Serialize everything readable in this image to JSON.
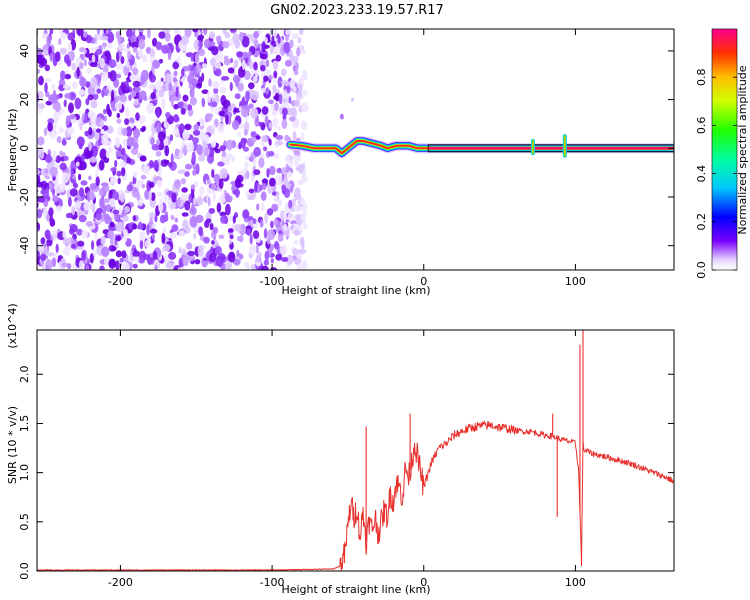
{
  "title": "GN02.2023.233.19.57.R17",
  "chart_data": [
    {
      "type": "heatmap",
      "xlabel": "Height of straight line (km)",
      "ylabel": "Frequency (Hz)",
      "xlim": [
        -255,
        165
      ],
      "ylim": [
        -50,
        49
      ],
      "xticks": [
        -200,
        -100,
        0,
        100
      ],
      "xtick_labels": [
        "-200",
        "-100",
        "0",
        "100"
      ],
      "yticks": [
        -40,
        -20,
        0,
        20,
        40
      ],
      "ytick_labels": [
        "-40",
        "-20",
        "0",
        "20",
        "40"
      ],
      "grid": false,
      "colorbar": {
        "label": "Normalized spectral amplitude",
        "range": [
          0,
          1
        ],
        "ticks": [
          0.0,
          0.2,
          0.4,
          0.6,
          0.8
        ],
        "tick_labels": [
          "0.0",
          "0.2",
          "0.4",
          "0.6",
          "0.8"
        ],
        "colormap": "rainbow"
      },
      "noise_region_x": [
        -255,
        -80
      ],
      "signal_track": {
        "x": [
          -88,
          -80,
          -72,
          -65,
          -58,
          -54,
          -48,
          -44,
          -40,
          -34,
          -28,
          -24,
          -18,
          -14,
          -10,
          -4,
          0,
          40,
          80,
          120,
          165
        ],
        "freq": [
          1.5,
          1,
          0,
          0,
          0,
          -2,
          1,
          3,
          3,
          2,
          1,
          0,
          1,
          1,
          1,
          0,
          0,
          0,
          0,
          0,
          0
        ],
        "peak_amplitude": 1.0
      },
      "ridge_x": [
        3,
        165
      ],
      "spikes": [
        {
          "x": 72,
          "freq": [
            -2,
            3
          ]
        },
        {
          "x": 93,
          "freq": [
            -3,
            5
          ]
        }
      ]
    },
    {
      "type": "line",
      "xlabel": "Height of straight line (km)",
      "ylabel": "SNR (10 * v/v)",
      "y_scale_note": "(x10^4)",
      "xlim": [
        -255,
        165
      ],
      "ylim": [
        0,
        2.45
      ],
      "xticks": [
        -200,
        -100,
        0,
        100
      ],
      "xtick_labels": [
        "-200",
        "-100",
        "0",
        "100"
      ],
      "yticks": [
        0.0,
        0.5,
        1.0,
        1.5,
        2.0
      ],
      "ytick_labels": [
        "0.0",
        "0.5",
        "1.0",
        "1.5",
        "2.0"
      ],
      "grid": false,
      "color": "#e8302d",
      "series": [
        {
          "x": [
            -255,
            -200,
            -150,
            -100,
            -60,
            -55,
            -52,
            -50,
            -48,
            -46,
            -44,
            -42,
            -40,
            -38,
            -36,
            -34,
            -32,
            -30,
            -28,
            -26,
            -24,
            -22,
            -20,
            -18,
            -16,
            -14,
            -12,
            -10,
            -8,
            -6,
            -4,
            -2,
            0,
            5,
            10,
            15,
            20,
            25,
            30,
            35,
            40,
            45,
            50,
            55,
            60,
            65,
            70,
            75,
            80,
            85,
            88,
            90,
            95,
            100,
            102,
            104,
            105,
            106,
            108,
            110,
            115,
            120,
            125,
            130,
            135,
            140,
            145,
            150,
            155,
            160,
            165
          ],
          "y": [
            0.01,
            0.01,
            0.01,
            0.01,
            0.02,
            0.05,
            0.18,
            0.45,
            0.7,
            0.55,
            0.65,
            0.35,
            0.6,
            0.3,
            0.5,
            0.42,
            0.55,
            0.38,
            0.5,
            0.62,
            0.55,
            0.8,
            0.7,
            0.9,
            0.85,
            0.75,
            1.05,
            0.95,
            1.1,
            1.3,
            1.15,
            1.0,
            0.85,
            1.1,
            1.25,
            1.3,
            1.38,
            1.42,
            1.45,
            1.47,
            1.48,
            1.48,
            1.46,
            1.45,
            1.43,
            1.42,
            1.42,
            1.4,
            1.38,
            1.37,
            1.35,
            1.34,
            1.32,
            1.3,
            1.05,
            0.1,
            1.3,
            1.22,
            1.22,
            1.2,
            1.18,
            1.16,
            1.14,
            1.12,
            1.1,
            1.07,
            1.04,
            1.01,
            0.98,
            0.95,
            0.91
          ]
        }
      ],
      "spikes": [
        {
          "x": -38,
          "y": 1.47
        },
        {
          "x": -9,
          "y": 1.6
        },
        {
          "x": 85,
          "y": 1.6
        },
        {
          "x": 88,
          "y": 0.55
        },
        {
          "x": 103,
          "y": 2.3
        },
        {
          "x": 104,
          "y": 0.05
        },
        {
          "x": 105,
          "y": 2.45
        }
      ]
    }
  ]
}
